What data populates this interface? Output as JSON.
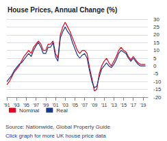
{
  "chart_data": {
    "type": "line",
    "title": "House Prices, Annual Change (%)",
    "annotations": [
      "Source: Nationwide, Global Property Guide",
      "Click graph for more UK house price data"
    ],
    "x": [
      1991,
      1991.5,
      1992,
      1992.5,
      1993,
      1993.5,
      1994,
      1994.5,
      1995,
      1995.5,
      1996,
      1996.5,
      1997,
      1997.5,
      1998,
      1998.5,
      1999,
      1999.5,
      2000,
      2000.5,
      2001,
      2001.5,
      2002,
      2002.5,
      2003,
      2003.5,
      2004,
      2004.5,
      2005,
      2005.5,
      2006,
      2006.5,
      2007,
      2007.5,
      2008,
      2008.5,
      2009,
      2009.5,
      2010,
      2010.5,
      2011,
      2011.5,
      2012,
      2012.5,
      2013,
      2013.5,
      2014,
      2014.5,
      2015,
      2015.5,
      2016,
      2016.5,
      2017,
      2017.5,
      2018,
      2018.5,
      2019,
      2019.5
    ],
    "series": [
      {
        "name": "Nominal",
        "color": "#e8001c",
        "values": [
          -12,
          -10,
          -7,
          -4,
          -2,
          0,
          3,
          6,
          8,
          10,
          8,
          12,
          14,
          16,
          14,
          10,
          10,
          14,
          14,
          16,
          8,
          5,
          20,
          25,
          28,
          25,
          22,
          18,
          14,
          10,
          8,
          10,
          10,
          8,
          -1,
          -8,
          -16,
          -15,
          -5,
          0,
          3,
          5,
          2,
          0,
          3,
          6,
          10,
          12,
          10,
          9,
          6,
          4,
          6,
          4,
          2,
          1,
          1,
          1
        ]
      },
      {
        "name": "Real",
        "color": "#1a3a8c",
        "values": [
          -10,
          -8,
          -6,
          -3,
          -1,
          1,
          2,
          4,
          6,
          8,
          6,
          10,
          13,
          15,
          12,
          8,
          8,
          12,
          12,
          15,
          6,
          3,
          18,
          22,
          25,
          22,
          20,
          15,
          11,
          7,
          5,
          7,
          8,
          5,
          -3,
          -10,
          -14,
          -13,
          -7,
          -2,
          0,
          2,
          0,
          -1,
          1,
          4,
          8,
          10,
          9,
          8,
          5,
          3,
          5,
          3,
          1,
          0,
          0,
          0
        ]
      }
    ],
    "xlim": [
      1991,
      2020
    ],
    "xticks": [
      {
        "value": 1991,
        "label": "'91"
      },
      {
        "value": 1993,
        "label": "'93"
      },
      {
        "value": 1995,
        "label": "'95"
      },
      {
        "value": 1997,
        "label": "'97"
      },
      {
        "value": 1999,
        "label": "'99"
      },
      {
        "value": 2001,
        "label": "'01"
      },
      {
        "value": 2003,
        "label": "'03"
      },
      {
        "value": 2005,
        "label": "'05"
      },
      {
        "value": 2007,
        "label": "'07"
      },
      {
        "value": 2009,
        "label": "'09"
      },
      {
        "value": 2011,
        "label": "'11"
      },
      {
        "value": 2013,
        "label": "'13"
      },
      {
        "value": 2015,
        "label": "'15"
      },
      {
        "value": 2017,
        "label": "'17"
      },
      {
        "value": 2019,
        "label": "'19"
      }
    ],
    "ylim": [
      -20,
      30
    ],
    "yticks": [
      -20,
      -15,
      -10,
      -5,
      0,
      5,
      10,
      15,
      20,
      25,
      30
    ],
    "grid": true,
    "legend": "lower left"
  }
}
